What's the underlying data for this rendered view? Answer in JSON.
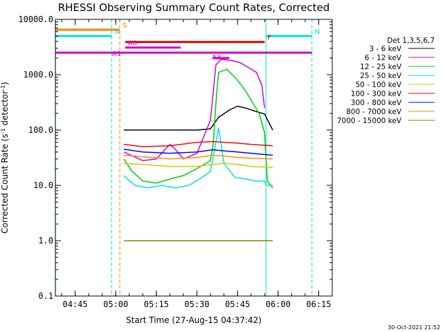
{
  "chart_data": {
    "type": "line",
    "title": "RHESSI Observing Summary Count Rates, Corrected",
    "xlabel": "Start Time (27-Aug-15 04:37:42)",
    "ylabel": "Corrected Count Rate (s⁻¹ detector⁻¹)",
    "ylabel_main": "Corrected Count Rate (s",
    "ylabel_sup1": "-1",
    "ylabel_mid": " detector",
    "ylabel_sup2": "-1",
    "ylabel_end": ")",
    "y_scale": "log",
    "ylim": [
      0.1,
      10000
    ],
    "xlim": [
      "04:37:42",
      "06:20:00"
    ],
    "y_ticks": [
      {
        "v": 0.1,
        "label": "0.1"
      },
      {
        "v": 1,
        "label": "1.0"
      },
      {
        "v": 10,
        "label": "10.0"
      },
      {
        "v": 100,
        "label": "100.0"
      },
      {
        "v": 1000,
        "label": "1000.0"
      },
      {
        "v": 10000,
        "label": "10000.0"
      }
    ],
    "x_ticks": [
      {
        "t": "04:45",
        "label": "04:45"
      },
      {
        "t": "05:00",
        "label": "05:00"
      },
      {
        "t": "05:15",
        "label": "05:15"
      },
      {
        "t": "05:30",
        "label": "05:30"
      },
      {
        "t": "05:45",
        "label": "05:45"
      },
      {
        "t": "06:00",
        "label": "06:00"
      },
      {
        "t": "06:15",
        "label": "06:15"
      }
    ],
    "legend": {
      "title": "Det 1,3,5,6,7",
      "placement": "right"
    },
    "series": [
      {
        "name": "3 - 6 keV",
        "color": "#000000",
        "t": [
          "05:03",
          "05:10",
          "05:20",
          "05:30",
          "05:35",
          "05:38",
          "05:42",
          "05:45",
          "05:48",
          "05:52",
          "05:55",
          "05:58"
        ],
        "values": [
          100,
          100,
          100,
          100,
          105,
          170,
          230,
          270,
          250,
          215,
          195,
          100
        ]
      },
      {
        "name": "6 - 12 keV",
        "color": "#d000d0",
        "t": [
          "05:03",
          "05:10",
          "05:15",
          "05:20",
          "05:22",
          "05:25",
          "05:30",
          "05:35",
          "05:37",
          "05:39",
          "05:43",
          "05:46",
          "05:49",
          "05:52",
          "05:54",
          "05:55"
        ],
        "values": [
          40,
          28,
          30,
          55,
          45,
          30,
          38,
          150,
          1500,
          1900,
          1800,
          1650,
          1350,
          1100,
          650,
          250
        ]
      },
      {
        "name": "12 - 25 keV",
        "color": "#00cc00",
        "t": [
          "05:03",
          "05:06",
          "05:10",
          "05:15",
          "05:20",
          "05:25",
          "05:30",
          "05:35",
          "05:36",
          "05:37",
          "05:38",
          "05:41",
          "05:44",
          "05:47",
          "05:50",
          "05:53",
          "05:55",
          "05:56",
          "05:58"
        ],
        "values": [
          30,
          18,
          12,
          11,
          13,
          15,
          20,
          28,
          55,
          300,
          1100,
          1250,
          900,
          600,
          350,
          200,
          90,
          12,
          9
        ]
      },
      {
        "name": "25 - 50 keV",
        "color": "#00e0e0",
        "t": [
          "05:03",
          "05:07",
          "05:12",
          "05:17",
          "05:22",
          "05:27",
          "05:32",
          "05:35",
          "05:37",
          "05:38",
          "05:40",
          "05:44",
          "05:48",
          "05:52",
          "05:55",
          "05:56",
          "05:58"
        ],
        "values": [
          15,
          10,
          9,
          10,
          9,
          10,
          14,
          18,
          60,
          110,
          25,
          14,
          13,
          12,
          12,
          10,
          10
        ]
      },
      {
        "name": "50 - 100 keV",
        "color": "#cccc00",
        "t": [
          "05:03",
          "05:10",
          "05:20",
          "05:30",
          "05:36",
          "05:40",
          "05:45",
          "05:50",
          "05:58"
        ],
        "values": [
          25,
          24,
          22,
          22,
          24,
          25,
          24,
          22,
          21
        ]
      },
      {
        "name": "100 - 300 keV",
        "color": "#ff0000",
        "t": [
          "05:03",
          "05:10",
          "05:20",
          "05:30",
          "05:36",
          "05:40",
          "05:45",
          "05:50",
          "05:58"
        ],
        "values": [
          55,
          50,
          52,
          60,
          62,
          60,
          58,
          55,
          52
        ]
      },
      {
        "name": "300 - 800 keV",
        "color": "#0000ff",
        "t": [
          "05:03",
          "05:10",
          "05:20",
          "05:30",
          "05:36",
          "05:40",
          "05:45",
          "05:50",
          "05:58"
        ],
        "values": [
          45,
          40,
          38,
          40,
          44,
          42,
          40,
          38,
          35
        ]
      },
      {
        "name": "800 - 7000 keV",
        "color": "#ff8c00",
        "t": [
          "05:03",
          "05:10",
          "05:20",
          "05:30",
          "05:36",
          "05:40",
          "05:45",
          "05:50",
          "05:58"
        ],
        "values": [
          35,
          33,
          30,
          32,
          35,
          34,
          32,
          31,
          30
        ]
      },
      {
        "name": "7000 - 15000 keV",
        "color": "#8b7d00",
        "t": [
          "05:03",
          "05:58"
        ],
        "values": [
          1.0,
          1.0
        ]
      }
    ],
    "flags": [
      {
        "label": "S",
        "color": "#ff8000",
        "level": 6500,
        "t_start": "04:37:42",
        "t_end": "05:01:30"
      },
      {
        "label": "N",
        "color": "#00e0e0",
        "level": 5000,
        "t_start": "04:37:42",
        "t_end": "04:58:30"
      },
      {
        "label": "N",
        "color": "#00e0e0",
        "level": 5000,
        "t_start": "05:55:30",
        "t_end": "06:12:30"
      },
      {
        "label": "F",
        "color": "#e00000",
        "level": 3900,
        "t_start": "05:03:30",
        "t_end": "05:55:00"
      },
      {
        "label": "A0",
        "color": "#d000d0",
        "level": 3100,
        "t_start": "05:03:30",
        "t_end": "05:24:00"
      },
      {
        "label": "A1",
        "color": "#d000d0",
        "level": 2500,
        "t_start": "04:37:42",
        "t_end": "06:12:30"
      },
      {
        "label": "A3",
        "color": "#d000d0",
        "level": 2000,
        "t_start": "05:36:00",
        "t_end": "05:42:00"
      }
    ],
    "vertical_lines": [
      {
        "t": "04:37:45",
        "color": "#00e0e0",
        "style": "solid"
      },
      {
        "t": "04:58:30",
        "color": "#00e0e0",
        "style": "dashed"
      },
      {
        "t": "05:01:30",
        "color": "#ff8000",
        "style": "dashed"
      },
      {
        "t": "05:55:30",
        "color": "#00e0e0",
        "style": "solid"
      },
      {
        "t": "06:12:30",
        "color": "#00e0e0",
        "style": "dashed"
      }
    ]
  },
  "footer": {
    "stamp": "30-Oct-2021 21:52"
  }
}
